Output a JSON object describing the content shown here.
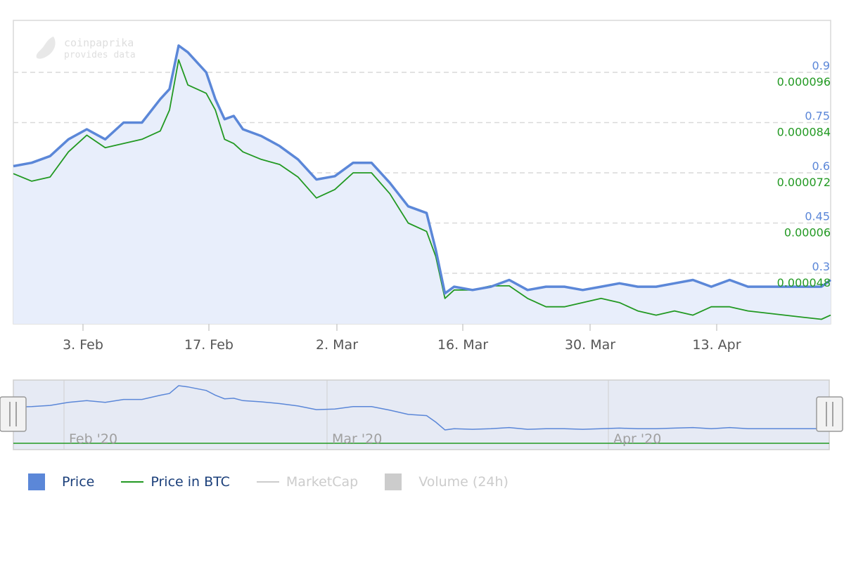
{
  "watermark": {
    "brand": "coinpaprika",
    "tagline": "provides data"
  },
  "chart_data": {
    "type": "line",
    "x_ticks": [
      "3. Feb",
      "17. Feb",
      "2. Mar",
      "16. Mar",
      "30. Mar",
      "13. Apr"
    ],
    "y_left": {
      "ticks": [
        "0.9",
        "0.75",
        "0.6",
        "0.45",
        "0.3"
      ],
      "values": [
        0.9,
        0.75,
        0.6,
        0.45,
        0.3
      ],
      "color": "#5b87d8"
    },
    "y_right": {
      "ticks": [
        "0.000096",
        "0.000084",
        "0.000072",
        "0.00006",
        "0.000048"
      ],
      "values": [
        9.6e-05,
        8.4e-05,
        7.2e-05,
        6e-05,
        4.8e-05
      ],
      "color": "#229922"
    },
    "grid": true,
    "x_range": [
      "2020-01-26",
      "2020-04-24"
    ],
    "series": [
      {
        "name": "Price",
        "color": "#5b87d8",
        "x": [
          "2020-01-26",
          "2020-01-28",
          "2020-01-30",
          "2020-02-01",
          "2020-02-03",
          "2020-02-05",
          "2020-02-07",
          "2020-02-09",
          "2020-02-11",
          "2020-02-12",
          "2020-02-13",
          "2020-02-14",
          "2020-02-15",
          "2020-02-16",
          "2020-02-17",
          "2020-02-18",
          "2020-02-19",
          "2020-02-20",
          "2020-02-22",
          "2020-02-24",
          "2020-02-26",
          "2020-02-28",
          "2020-03-01",
          "2020-03-03",
          "2020-03-05",
          "2020-03-07",
          "2020-03-09",
          "2020-03-11",
          "2020-03-12",
          "2020-03-13",
          "2020-03-14",
          "2020-03-16",
          "2020-03-18",
          "2020-03-20",
          "2020-03-22",
          "2020-03-24",
          "2020-03-26",
          "2020-03-28",
          "2020-03-30",
          "2020-04-01",
          "2020-04-03",
          "2020-04-05",
          "2020-04-07",
          "2020-04-09",
          "2020-04-11",
          "2020-04-13",
          "2020-04-15",
          "2020-04-17",
          "2020-04-19",
          "2020-04-21",
          "2020-04-23",
          "2020-04-24"
        ],
        "y": [
          0.62,
          0.63,
          0.65,
          0.7,
          0.73,
          0.7,
          0.75,
          0.75,
          0.82,
          0.85,
          0.98,
          0.96,
          0.93,
          0.9,
          0.82,
          0.76,
          0.77,
          0.73,
          0.71,
          0.68,
          0.64,
          0.58,
          0.59,
          0.63,
          0.63,
          0.57,
          0.5,
          0.48,
          0.37,
          0.24,
          0.26,
          0.25,
          0.26,
          0.28,
          0.25,
          0.26,
          0.26,
          0.25,
          0.26,
          0.27,
          0.26,
          0.26,
          0.27,
          0.28,
          0.26,
          0.28,
          0.26,
          0.26,
          0.26,
          0.26,
          0.26,
          0.28
        ]
      },
      {
        "name": "Price in BTC",
        "color": "#229922",
        "x": [
          "2020-01-26",
          "2020-01-28",
          "2020-01-30",
          "2020-02-01",
          "2020-02-03",
          "2020-02-05",
          "2020-02-07",
          "2020-02-09",
          "2020-02-11",
          "2020-02-12",
          "2020-02-13",
          "2020-02-14",
          "2020-02-15",
          "2020-02-16",
          "2020-02-17",
          "2020-02-18",
          "2020-02-19",
          "2020-02-20",
          "2020-02-22",
          "2020-02-24",
          "2020-02-26",
          "2020-02-28",
          "2020-03-01",
          "2020-03-03",
          "2020-03-05",
          "2020-03-07",
          "2020-03-09",
          "2020-03-11",
          "2020-03-12",
          "2020-03-13",
          "2020-03-14",
          "2020-03-16",
          "2020-03-18",
          "2020-03-20",
          "2020-03-22",
          "2020-03-24",
          "2020-03-26",
          "2020-03-28",
          "2020-03-30",
          "2020-04-01",
          "2020-04-03",
          "2020-04-05",
          "2020-04-07",
          "2020-04-09",
          "2020-04-11",
          "2020-04-13",
          "2020-04-15",
          "2020-04-17",
          "2020-04-19",
          "2020-04-21",
          "2020-04-23",
          "2020-04-24"
        ],
        "y": [
          7.18e-05,
          7e-05,
          7.1e-05,
          7.7e-05,
          8.1e-05,
          7.8e-05,
          7.9e-05,
          8e-05,
          8.2e-05,
          8.7e-05,
          9.9e-05,
          9.3e-05,
          9.2e-05,
          9.1e-05,
          8.7e-05,
          8e-05,
          7.9e-05,
          7.7e-05,
          7.52e-05,
          7.4e-05,
          7.1e-05,
          6.6e-05,
          6.8e-05,
          7.2e-05,
          7.2e-05,
          6.7e-05,
          6e-05,
          5.8e-05,
          5.2e-05,
          4.2e-05,
          4.4e-05,
          4.4e-05,
          4.5e-05,
          4.5e-05,
          4.2e-05,
          4e-05,
          4e-05,
          4.1e-05,
          4.2e-05,
          4.1e-05,
          3.9e-05,
          3.8e-05,
          3.9e-05,
          3.8e-05,
          4e-05,
          4e-05,
          3.9e-05,
          3.85e-05,
          3.8e-05,
          3.75e-05,
          3.7e-05,
          3.8e-05
        ]
      }
    ]
  },
  "navigator": {
    "labels": [
      "Feb '20",
      "Mar '20",
      "Apr '20"
    ]
  },
  "legend": [
    {
      "label": "Price",
      "color": "#5b87d8",
      "symbol": "box",
      "active": true
    },
    {
      "label": "Price in BTC",
      "color": "#229922",
      "symbol": "line",
      "active": true
    },
    {
      "label": "MarketCap",
      "color": "#cccccc",
      "symbol": "line",
      "active": false
    },
    {
      "label": "Volume (24h)",
      "color": "#cccccc",
      "symbol": "box",
      "active": false
    }
  ]
}
